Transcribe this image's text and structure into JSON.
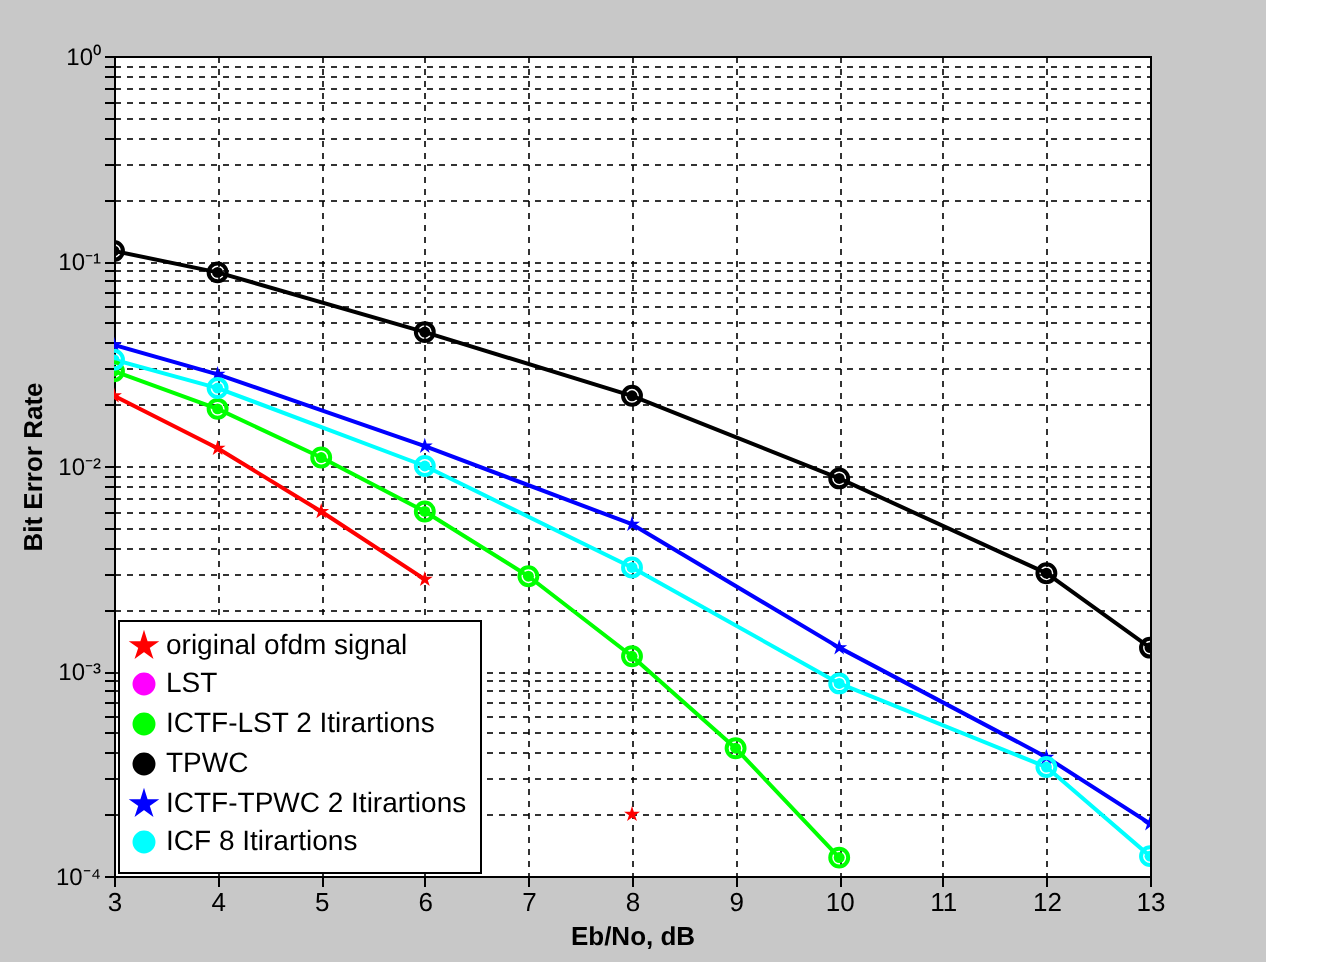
{
  "chart_data": {
    "type": "line",
    "xlabel": "Eb/No, dB",
    "ylabel": "Bit Error Rate",
    "xlim": [
      3,
      13
    ],
    "xticks": [
      3,
      4,
      5,
      6,
      7,
      8,
      9,
      10,
      11,
      12,
      13
    ],
    "ylim": [
      0.0001,
      1
    ],
    "log": "y",
    "yticks": [
      {
        "value": 0.0001,
        "label": "10⁻⁴"
      },
      {
        "value": 0.0002,
        "label": null
      },
      {
        "value": 0.0003,
        "label": null
      },
      {
        "value": 0.0004,
        "label": null
      },
      {
        "value": 0.0005,
        "label": null
      },
      {
        "value": 0.0006,
        "label": null
      },
      {
        "value": 0.0007,
        "label": null
      },
      {
        "value": 0.0008,
        "label": null
      },
      {
        "value": 0.0009,
        "label": null
      },
      {
        "value": 0.001,
        "label": "10⁻³"
      },
      {
        "value": 0.002,
        "label": null
      },
      {
        "value": 0.003,
        "label": null
      },
      {
        "value": 0.004,
        "label": null
      },
      {
        "value": 0.005,
        "label": null
      },
      {
        "value": 0.006,
        "label": null
      },
      {
        "value": 0.007,
        "label": null
      },
      {
        "value": 0.008,
        "label": null
      },
      {
        "value": 0.009,
        "label": null
      },
      {
        "value": 0.01,
        "label": "10⁻²"
      },
      {
        "value": 0.02,
        "label": null
      },
      {
        "value": 0.03,
        "label": null
      },
      {
        "value": 0.04,
        "label": null
      },
      {
        "value": 0.05,
        "label": null
      },
      {
        "value": 0.06,
        "label": null
      },
      {
        "value": 0.07,
        "label": null
      },
      {
        "value": 0.08,
        "label": null
      },
      {
        "value": 0.09,
        "label": null
      },
      {
        "value": 0.1,
        "label": "10⁻¹"
      },
      {
        "value": 0.2,
        "label": null
      },
      {
        "value": 0.3,
        "label": null
      },
      {
        "value": 0.4,
        "label": null
      },
      {
        "value": 0.5,
        "label": null
      },
      {
        "value": 0.6,
        "label": null
      },
      {
        "value": 0.7,
        "label": null
      },
      {
        "value": 0.8,
        "label": null
      },
      {
        "value": 0.9,
        "label": null
      },
      {
        "value": 1,
        "label": "10⁰"
      }
    ],
    "grid": true,
    "legend": "bottom left",
    "series": [
      {
        "name": "original ofdm signal",
        "color": "#ff0000",
        "marker": "star",
        "x": [
          3,
          4,
          5,
          6,
          7,
          8
        ],
        "values": [
          0.022,
          0.0122,
          0.006,
          0.0028,
          null,
          0.0002
        ]
      },
      {
        "name": "LST",
        "color": "#ff00ff",
        "marker": "circle"
      },
      {
        "name": "ICTF-LST 2 Itirartions",
        "color": "#00ff00",
        "marker": "circle",
        "x": [
          3,
          4,
          5,
          6,
          7,
          8,
          9,
          10
        ],
        "values": [
          0.029,
          0.019,
          0.011,
          0.006,
          0.0029,
          0.00118,
          0.00042,
          0.000123
        ]
      },
      {
        "name": "TPWC",
        "color": "#000000",
        "marker": "circle",
        "x": [
          3,
          4,
          6,
          8,
          10,
          12,
          13
        ],
        "values": [
          0.112,
          0.088,
          0.045,
          0.022,
          0.0087,
          0.003,
          0.0013
        ]
      },
      {
        "name": "ICTF-TPWC 2 Itirartions",
        "color": "#0000ff",
        "marker": "star",
        "x": [
          3,
          4,
          6,
          8,
          10,
          12,
          13
        ],
        "values": [
          0.039,
          0.028,
          0.0125,
          0.0052,
          0.0013,
          0.00038,
          0.00018
        ]
      },
      {
        "name": "ICF 8 Itirartions",
        "color": "#00ffff",
        "marker": "circle",
        "x": [
          3,
          4,
          6,
          8,
          10,
          12,
          13
        ],
        "values": [
          0.033,
          0.024,
          0.01,
          0.0032,
          0.00087,
          0.00034,
          0.000125
        ]
      }
    ]
  }
}
